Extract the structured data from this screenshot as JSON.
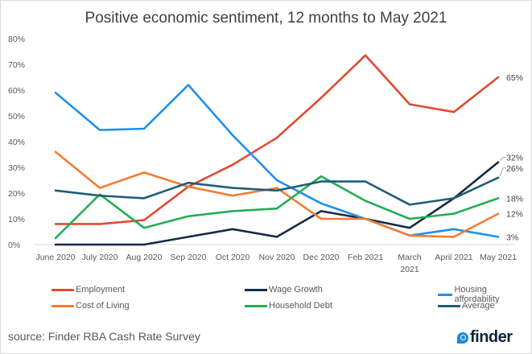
{
  "chart_data": {
    "type": "line",
    "title": "Positive economic sentiment, 12 months to May 2021",
    "xlabel": "",
    "ylabel": "",
    "ylim": [
      0,
      80
    ],
    "yticks": [
      "0%",
      "10%",
      "20%",
      "30%",
      "40%",
      "50%",
      "60%",
      "70%",
      "80%"
    ],
    "ytick_values": [
      0,
      10,
      20,
      30,
      40,
      50,
      60,
      70,
      80
    ],
    "grid": false,
    "categories": [
      "June 2020",
      "July 2020",
      "Aug 2020",
      "Sep 2020",
      "Oct 2020",
      "Nov 2020",
      "Dec 2020",
      "Feb 2021",
      "March 2021",
      "April 2021",
      "May 2021"
    ],
    "series": [
      {
        "name": "Employment",
        "color": "#e04a2f",
        "values": [
          8,
          8,
          9.5,
          22.5,
          31,
          41.5,
          57,
          73.5,
          54.5,
          51.5,
          65
        ],
        "end_label": "65%"
      },
      {
        "name": "Wage Growth",
        "color": "#16294a",
        "values": [
          0,
          0,
          0,
          3,
          6,
          3,
          13,
          10,
          6.5,
          18,
          32
        ],
        "end_label": "32%"
      },
      {
        "name": "Housing affordability",
        "color": "#1f8ff0",
        "values": [
          59,
          44.5,
          45,
          62,
          42.5,
          25,
          16,
          10,
          3.5,
          6,
          3
        ],
        "end_label": "3%"
      },
      {
        "name": "Cost of Living",
        "color": "#f07d33",
        "values": [
          36,
          22,
          28,
          22.5,
          19,
          22,
          10,
          10,
          3.5,
          3,
          12
        ],
        "end_label": "12%"
      },
      {
        "name": "Household Debt",
        "color": "#23ad55",
        "values": [
          2.5,
          19.5,
          6.5,
          11,
          13,
          14,
          26.5,
          17,
          10,
          12,
          18
        ],
        "end_label": "18%"
      },
      {
        "name": "Average",
        "color": "#1f5e75",
        "values": [
          21,
          19,
          18,
          24,
          22,
          21,
          24.5,
          24.5,
          15.5,
          18,
          26
        ],
        "end_label": "26%"
      }
    ],
    "legend_position": "bottom"
  },
  "footer": {
    "source": "source: Finder RBA Cash Rate Survey",
    "logo_text": "finder"
  }
}
